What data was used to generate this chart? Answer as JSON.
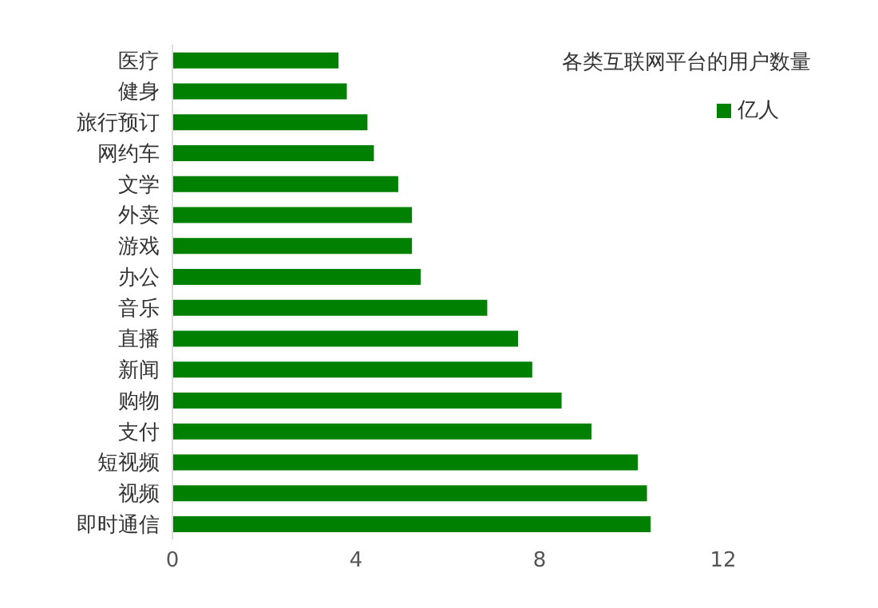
{
  "chart_data": {
    "type": "bar",
    "orientation": "horizontal",
    "title": "各类互联网平台的用户数量",
    "categories": [
      "医疗",
      "健身",
      "旅行预订",
      "网约车",
      "文学",
      "外卖",
      "游戏",
      "办公",
      "音乐",
      "直播",
      "新闻",
      "购物",
      "支付",
      "短视频",
      "视频",
      "即时通信"
    ],
    "series": [
      {
        "name": "亿人",
        "color": "#008000",
        "values": [
          3.62,
          3.8,
          4.25,
          4.39,
          4.92,
          5.22,
          5.22,
          5.41,
          6.86,
          7.53,
          7.84,
          8.48,
          9.13,
          10.14,
          10.34,
          10.42
        ]
      }
    ],
    "xlim": [
      0,
      12
    ],
    "xticks": [
      0,
      4,
      8,
      12
    ],
    "grid": false,
    "legend": "top right"
  }
}
